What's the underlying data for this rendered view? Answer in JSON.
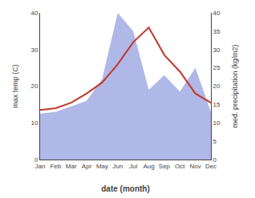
{
  "chart_data": {
    "type": "line",
    "categories": [
      "Jan",
      "Feb",
      "Mar",
      "Apr",
      "May",
      "Jun",
      "Jul",
      "Aug",
      "Sep",
      "Oct",
      "Nov",
      "Dec"
    ],
    "series": [
      {
        "type": "area",
        "axis": "y2",
        "color": "#b0b8e8",
        "values": [
          12.5,
          13.0,
          14.5,
          16.0,
          22.0,
          40.0,
          35.0,
          19.0,
          23.0,
          18.5,
          25.0,
          13.0
        ]
      },
      {
        "type": "line",
        "color": "#c0392b",
        "values": [
          13.5,
          14.0,
          15.5,
          18.0,
          21.0,
          26.0,
          32.0,
          36.0,
          28.5,
          24.0,
          18.0,
          15.5
        ]
      }
    ],
    "xlabel": "date (month)",
    "ylabel": "max temp (C)",
    "y2label": "med. precipitation (kg/m2)",
    "ylim": [
      0,
      40
    ],
    "yticks": [
      0,
      10,
      20,
      30,
      40
    ],
    "y2lim": [
      0,
      40
    ],
    "y2ticks": [
      0,
      5,
      10,
      15,
      20,
      25,
      30,
      35,
      40
    ],
    "grid": false
  }
}
